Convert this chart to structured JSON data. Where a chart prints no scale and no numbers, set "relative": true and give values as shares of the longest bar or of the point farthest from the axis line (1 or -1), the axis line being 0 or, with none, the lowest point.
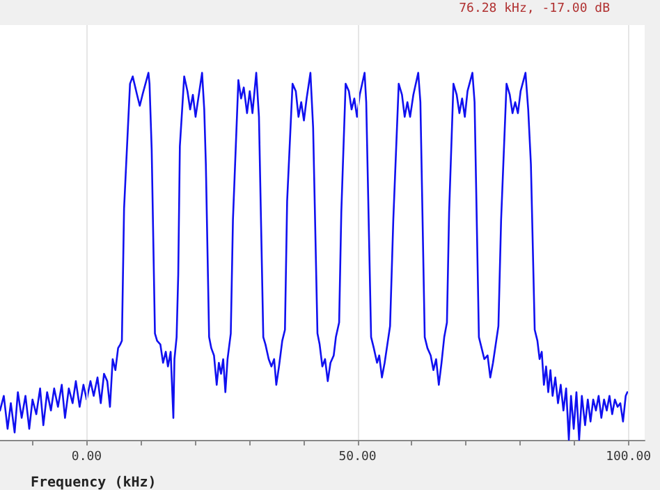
{
  "chart_data": {
    "type": "line",
    "xlabel": "Frequency (kHz)",
    "relative": true,
    "grid": "x",
    "marker": "none",
    "line_style": "solid",
    "annotations": [
      "76.28 kHz, -17.00 dB"
    ],
    "xlim": [
      -16,
      103
    ],
    "xticks": [
      {
        "value": -10,
        "label": null
      },
      {
        "value": 0,
        "label": "0.00"
      },
      {
        "value": 10,
        "label": null
      },
      {
        "value": 20,
        "label": null
      },
      {
        "value": 30,
        "label": null
      },
      {
        "value": 40,
        "label": null
      },
      {
        "value": 50,
        "label": "50.00"
      },
      {
        "value": 60,
        "label": null
      },
      {
        "value": 70,
        "label": null
      },
      {
        "value": 80,
        "label": null
      },
      {
        "value": 90,
        "label": null
      },
      {
        "value": 100,
        "label": "100.00"
      }
    ],
    "series": [
      {
        "color": "#1010f0",
        "x": [
          -16,
          -15.3,
          -14.6,
          -14,
          -13.3,
          -12.7,
          -12,
          -11.3,
          -10.6,
          -10,
          -9.3,
          -8.6,
          -8,
          -7.3,
          -6.6,
          -6,
          -5.3,
          -4.6,
          -4,
          -3.3,
          -2.6,
          -2,
          -1.3,
          -0.6,
          0,
          0.7,
          1.3,
          2,
          2.6,
          3.2,
          3.8,
          4.3,
          4.8,
          5.3,
          5.8,
          6.2,
          6.5,
          6.9,
          8.0,
          8.5,
          9.3,
          9.8,
          10.3,
          11.4,
          11.6,
          12.0,
          12.6,
          13.0,
          13.6,
          14.1,
          14.6,
          15.0,
          15.5,
          16.0,
          16.2,
          16.6,
          16.9,
          17.2,
          18.0,
          18.6,
          19.1,
          19.6,
          20.1,
          21.3,
          21.7,
          22.0,
          22.6,
          23.0,
          23.5,
          24.0,
          24.4,
          24.8,
          25.2,
          25.6,
          26.0,
          26.6,
          27.0,
          28.0,
          28.5,
          29.0,
          29.6,
          30.1,
          30.6,
          31.3,
          31.8,
          32.6,
          33.0,
          33.6,
          34.1,
          34.6,
          35.0,
          35.5,
          36.1,
          36.6,
          37.0,
          38.0,
          38.6,
          39.1,
          39.6,
          40.1,
          40.6,
          41.3,
          41.8,
          42.6,
          43.0,
          43.5,
          44.0,
          44.5,
          45.0,
          45.6,
          46.0,
          46.6,
          47.0,
          47.8,
          48.4,
          48.9,
          49.4,
          49.9,
          50.4,
          51.3,
          51.6,
          52.5,
          53.0,
          53.6,
          54.0,
          54.5,
          55.0,
          55.5,
          56.0,
          56.6,
          57.6,
          58.2,
          58.7,
          59.2,
          59.7,
          60.3,
          61.2,
          61.6,
          62.4,
          62.9,
          63.5,
          64.0,
          64.5,
          65.0,
          65.5,
          66.0,
          66.5,
          66.9,
          67.7,
          68.3,
          68.8,
          69.3,
          69.8,
          70.3,
          71.2,
          71.6,
          72.4,
          72.9,
          73.4,
          74.0,
          74.5,
          75.0,
          75.5,
          76.0,
          76.5,
          77.5,
          78.1,
          78.6,
          79.1,
          79.6,
          80.1,
          81.0,
          81.5,
          82.0,
          82.7,
          83.2,
          83.6,
          84.0,
          84.4,
          84.8,
          85.2,
          85.6,
          86.0,
          86.5,
          87.0,
          87.5,
          88.0,
          88.5,
          89.0,
          89.4,
          89.9,
          90.4,
          90.9,
          91.4,
          92.0,
          92.5,
          93.0,
          93.5,
          94.0,
          94.5,
          95.0,
          95.5,
          96.0,
          96.5,
          97.0,
          97.5,
          98.0,
          98.5,
          99.0,
          99.5,
          99.8
        ],
        "values": [
          0.08,
          0.12,
          0.03,
          0.1,
          0.02,
          0.13,
          0.06,
          0.12,
          0.03,
          0.11,
          0.07,
          0.14,
          0.04,
          0.13,
          0.08,
          0.14,
          0.09,
          0.15,
          0.06,
          0.14,
          0.1,
          0.16,
          0.09,
          0.15,
          0.11,
          0.16,
          0.12,
          0.17,
          0.1,
          0.18,
          0.16,
          0.09,
          0.22,
          0.19,
          0.25,
          0.26,
          0.27,
          0.63,
          0.97,
          0.99,
          0.94,
          0.91,
          0.94,
          1.0,
          0.97,
          0.79,
          0.29,
          0.27,
          0.26,
          0.21,
          0.24,
          0.2,
          0.24,
          0.06,
          0.22,
          0.28,
          0.45,
          0.8,
          0.99,
          0.95,
          0.9,
          0.94,
          0.88,
          1.0,
          0.9,
          0.75,
          0.28,
          0.25,
          0.23,
          0.15,
          0.21,
          0.18,
          0.22,
          0.13,
          0.22,
          0.29,
          0.6,
          0.98,
          0.93,
          0.96,
          0.89,
          0.95,
          0.89,
          1.0,
          0.88,
          0.28,
          0.26,
          0.22,
          0.2,
          0.22,
          0.15,
          0.2,
          0.27,
          0.3,
          0.65,
          0.97,
          0.95,
          0.88,
          0.92,
          0.87,
          0.93,
          1.0,
          0.85,
          0.29,
          0.26,
          0.2,
          0.22,
          0.16,
          0.21,
          0.23,
          0.28,
          0.32,
          0.62,
          0.97,
          0.95,
          0.9,
          0.93,
          0.88,
          0.94,
          1.0,
          0.92,
          0.28,
          0.25,
          0.21,
          0.23,
          0.17,
          0.21,
          0.26,
          0.31,
          0.6,
          0.97,
          0.94,
          0.88,
          0.92,
          0.88,
          0.94,
          1.0,
          0.92,
          0.28,
          0.25,
          0.23,
          0.19,
          0.22,
          0.15,
          0.21,
          0.28,
          0.32,
          0.62,
          0.97,
          0.94,
          0.89,
          0.93,
          0.88,
          0.95,
          1.0,
          0.92,
          0.28,
          0.25,
          0.22,
          0.23,
          0.17,
          0.21,
          0.26,
          0.31,
          0.6,
          0.97,
          0.94,
          0.89,
          0.92,
          0.89,
          0.95,
          1.0,
          0.9,
          0.75,
          0.3,
          0.27,
          0.22,
          0.24,
          0.15,
          0.2,
          0.13,
          0.19,
          0.12,
          0.17,
          0.1,
          0.15,
          0.08,
          0.14,
          0.0,
          0.12,
          0.03,
          0.13,
          0.0,
          0.12,
          0.04,
          0.11,
          0.05,
          0.11,
          0.08,
          0.12,
          0.06,
          0.11,
          0.08,
          0.12,
          0.07,
          0.11,
          0.09,
          0.1,
          0.05,
          0.12,
          0.13
        ]
      }
    ]
  }
}
